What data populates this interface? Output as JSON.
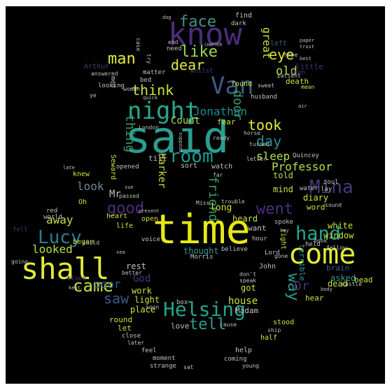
{
  "cloud": {
    "words": [
      {
        "text": "said",
        "color": "#2a9d8f"
      },
      {
        "text": "time",
        "color": "#e6e81a"
      },
      {
        "text": "know",
        "color": "#4b2d7a"
      },
      {
        "text": "shall",
        "color": "#e3ea3a"
      },
      {
        "text": "come",
        "color": "#e3ea3a"
      },
      {
        "text": "Van",
        "color": "#3e5a8a"
      },
      {
        "text": "night",
        "color": "#29a68b"
      },
      {
        "text": "Helsing",
        "color": "#22a38b"
      },
      {
        "text": "hand",
        "color": "#21a48b"
      },
      {
        "text": "Mina",
        "color": "#46397a"
      },
      {
        "text": "room",
        "color": "#1f9a8c"
      },
      {
        "text": "Lucy",
        "color": "#2f7b8e"
      },
      {
        "text": "came",
        "color": "#c4e03b"
      },
      {
        "text": "good",
        "color": "#4b2d7a"
      },
      {
        "text": "went",
        "color": "#4b2d7a"
      },
      {
        "text": "face",
        "color": "#4a8c8c"
      },
      {
        "text": "like",
        "color": "#9bd94a"
      },
      {
        "text": "man",
        "color": "#e8ec3a"
      },
      {
        "text": "dear",
        "color": "#e3ea3a"
      },
      {
        "text": "eye",
        "color": "#e0e52e"
      },
      {
        "text": "think",
        "color": "#c9e33a"
      },
      {
        "text": "took",
        "color": "#e3ea3a"
      },
      {
        "text": "day",
        "color": "#2a8f8c"
      },
      {
        "text": "saw",
        "color": "#3e5a8a"
      },
      {
        "text": "tell",
        "color": "#2a9d8f"
      },
      {
        "text": "way",
        "color": "#2a9d8f"
      },
      {
        "text": "door",
        "color": "#3a9a6a"
      },
      {
        "text": "friend",
        "color": "#3a9a6a"
      },
      {
        "text": "thing",
        "color": "#3a9a6a"
      },
      {
        "text": "Jonathan",
        "color": "#1f8a8a"
      },
      {
        "text": "Count",
        "color": "#a9dc4a"
      },
      {
        "text": "sleep",
        "color": "#b6de4a"
      },
      {
        "text": "old",
        "color": "#b6de4a"
      },
      {
        "text": "Professor",
        "color": "#b6de4a"
      },
      {
        "text": "poor",
        "color": "#3e5a8a"
      },
      {
        "text": "looked",
        "color": "#b6de4a"
      },
      {
        "text": "away",
        "color": "#bde04a"
      },
      {
        "text": "look",
        "color": "#6a8a9a"
      },
      {
        "text": "great",
        "color": "#c9e33a"
      },
      {
        "text": "Dr",
        "color": "#4b2d7a"
      },
      {
        "text": "Harker",
        "color": "#c9e33a"
      },
      {
        "text": "Mr",
        "color": "#c0c0c0"
      },
      {
        "text": "God",
        "color": "#46397a"
      },
      {
        "text": "house",
        "color": "#c9e33a"
      },
      {
        "text": "fear",
        "color": "#c9e33a"
      },
      {
        "text": "told",
        "color": "#b6de4a"
      },
      {
        "text": "long",
        "color": "#c9e33a"
      },
      {
        "text": "white",
        "color": "#c9e33a"
      },
      {
        "text": "window",
        "color": "#c9e33a"
      },
      {
        "text": "asked",
        "color": "#2a9d8f"
      },
      {
        "text": "thought",
        "color": "#2a9d8f"
      },
      {
        "text": "rest",
        "color": "#c0c0c0"
      },
      {
        "text": "heard",
        "color": "#c9e33a"
      },
      {
        "text": "want",
        "color": "#c0c0c0"
      },
      {
        "text": "diary",
        "color": "#c9e33a"
      },
      {
        "text": "word",
        "color": "#c9e33a"
      },
      {
        "text": "mind",
        "color": "#c9e33a"
      },
      {
        "text": "work",
        "color": "#c9e33a"
      },
      {
        "text": "light",
        "color": "#c9e33a"
      },
      {
        "text": "place",
        "color": "#c9e33a"
      },
      {
        "text": "round",
        "color": "#c9e33a"
      },
      {
        "text": "let",
        "color": "#c9e33a"
      },
      {
        "text": "love",
        "color": "#c0c0c0"
      },
      {
        "text": "got",
        "color": "#c9e33a"
      },
      {
        "text": "Madam",
        "color": "#c0c0c0"
      },
      {
        "text": "John",
        "color": "#c0c0c0"
      },
      {
        "text": "head",
        "color": "#c9e33a"
      },
      {
        "text": "dead",
        "color": "#c9e33a"
      },
      {
        "text": "brain",
        "color": "#3e5a8a"
      },
      {
        "text": "terrible",
        "color": "#2a9d8f"
      },
      {
        "text": "hear",
        "color": "#c9e33a"
      },
      {
        "text": "little",
        "color": "#4b2d7a"
      },
      {
        "text": "death",
        "color": "#c9e33a"
      },
      {
        "text": "mean",
        "color": "#c9e33a"
      },
      {
        "text": "seen",
        "color": "#46397a"
      },
      {
        "text": "left",
        "color": "#3e5a8a"
      },
      {
        "text": "find",
        "color": "#c0c0c0"
      },
      {
        "text": "dark",
        "color": "#c0c0c0"
      },
      {
        "text": "need",
        "color": "#c0c0c0"
      },
      {
        "text": "looking",
        "color": "#c0c0c0"
      },
      {
        "text": "Arthur",
        "color": "#46397a"
      },
      {
        "text": "whilst",
        "color": "#46397a"
      },
      {
        "text": "found",
        "color": "#c9e33a"
      },
      {
        "text": "heart",
        "color": "#c9e33a"
      },
      {
        "text": "life",
        "color": "#c9e33a"
      },
      {
        "text": "open",
        "color": "#c9e33a"
      },
      {
        "text": "began",
        "color": "#c9e33a"
      },
      {
        "text": "blood",
        "color": "#4b2d7a"
      },
      {
        "text": "knew",
        "color": "#c9e33a"
      },
      {
        "text": "felt",
        "color": "#4b2d7a"
      },
      {
        "text": "red",
        "color": "#c0c0c0"
      },
      {
        "text": "world",
        "color": "#c0c0c0"
      },
      {
        "text": "Oh",
        "color": "#c9e33a"
      },
      {
        "text": "Seward",
        "color": "#c9e33a"
      },
      {
        "text": "right",
        "color": "#c9e33a"
      },
      {
        "text": "help",
        "color": "#c0c0c0"
      },
      {
        "text": "coming",
        "color": "#c0c0c0"
      },
      {
        "text": "moment",
        "color": "#c0c0c0"
      },
      {
        "text": "strange",
        "color": "#c0c0c0"
      },
      {
        "text": "feel",
        "color": "#c0c0c0"
      },
      {
        "text": "close",
        "color": "#c0c0c0"
      },
      {
        "text": "better",
        "color": "#c0c0c0"
      },
      {
        "text": "voice",
        "color": "#c0c0c0"
      },
      {
        "text": "Morris",
        "color": "#c0c0c0"
      },
      {
        "text": "believe",
        "color": "#c0c0c0"
      },
      {
        "text": "Lord",
        "color": "#c0c0c0"
      },
      {
        "text": "hour",
        "color": "#c0c0c0"
      },
      {
        "text": "spoke",
        "color": "#c0c0c0"
      },
      {
        "text": "held",
        "color": "#c0c0c0"
      },
      {
        "text": "fellow",
        "color": "#c0c0c0"
      },
      {
        "text": "stood",
        "color": "#c9e33a"
      },
      {
        "text": "half",
        "color": "#c9e33a"
      },
      {
        "text": "ship",
        "color": "#c0c0c0"
      },
      {
        "text": "young",
        "color": "#c0c0c0"
      },
      {
        "text": "box",
        "color": "#c0c0c0"
      },
      {
        "text": "soon",
        "color": "#c0c0c0"
      },
      {
        "text": "water",
        "color": "#c0c0c0"
      },
      {
        "text": "soul",
        "color": "#c0c0c0"
      },
      {
        "text": "lay",
        "color": "#c0c0c0"
      },
      {
        "text": "sound",
        "color": "#c0c0c0"
      },
      {
        "text": "castle",
        "color": "#c0c0c0"
      },
      {
        "text": "book",
        "color": "#c0c0c0"
      },
      {
        "text": "Quincey",
        "color": "#c0c0c0"
      },
      {
        "text": "husband",
        "color": "#c0c0c0"
      },
      {
        "text": "bed",
        "color": "#c0c0c0"
      },
      {
        "text": "woman",
        "color": "#c0c0c0"
      },
      {
        "text": "matter",
        "color": "#c0c0c0"
      },
      {
        "text": "men",
        "color": "#c0c0c0"
      },
      {
        "text": "try",
        "color": "#c0c0c0"
      },
      {
        "text": "end",
        "color": "#c0c0c0"
      },
      {
        "text": "case",
        "color": "#c0c0c0"
      },
      {
        "text": "ye",
        "color": "#c0c0c0"
      },
      {
        "text": "answered",
        "color": "#c0c0c0"
      },
      {
        "text": "London",
        "color": "#c0c0c0"
      },
      {
        "text": "horse",
        "color": "#c0c0c0"
      },
      {
        "text": "turned",
        "color": "#c0c0c0"
      },
      {
        "text": "till",
        "color": "#c0c0c0"
      },
      {
        "text": "sort",
        "color": "#c0c0c0"
      },
      {
        "text": "watch",
        "color": "#c0c0c0"
      },
      {
        "text": "opened",
        "color": "#c0c0c0"
      },
      {
        "text": "passed",
        "color": "#c0c0c0"
      },
      {
        "text": "present",
        "color": "#c0c0c0"
      },
      {
        "text": "trouble",
        "color": "#c0c0c0"
      },
      {
        "text": "Miss",
        "color": "#c0c0c0"
      },
      {
        "text": "child",
        "color": "#c0c0c0"
      },
      {
        "text": "going",
        "color": "#c0c0c0"
      },
      {
        "text": "kept",
        "color": "#c0c0c0"
      },
      {
        "text": "sat",
        "color": "#c0c0c0"
      },
      {
        "text": "later",
        "color": "#c0c0c0"
      },
      {
        "text": "cause",
        "color": "#c0c0c0"
      },
      {
        "text": "don't",
        "color": "#c0c0c0"
      },
      {
        "text": "speak",
        "color": "#c0c0c0"
      },
      {
        "text": "gone",
        "color": "#c0c0c0"
      },
      {
        "text": "hope",
        "color": "#c0c0c0"
      },
      {
        "text": "best",
        "color": "#c0c0c0"
      },
      {
        "text": "patient",
        "color": "#c0c0c0"
      },
      {
        "text": "sweet",
        "color": "#c0c0c0"
      },
      {
        "text": "trust",
        "color": "#c0c0c0"
      },
      {
        "text": "air",
        "color": "#c0c0c0"
      },
      {
        "text": "CHAPTER",
        "color": "#c0c0c0"
      },
      {
        "text": "quick",
        "color": "#c0c0c0"
      },
      {
        "text": "sun",
        "color": "#c0c0c0"
      },
      {
        "text": "late",
        "color": "#c0c0c0"
      },
      {
        "text": "body",
        "color": "#c0c0c0"
      },
      {
        "text": "ready",
        "color": "#c0c0c0"
      },
      {
        "text": "letter",
        "color": "#c0c0c0"
      },
      {
        "text": "suppose",
        "color": "#c0c0c0"
      },
      {
        "text": "far",
        "color": "#c0c0c0"
      },
      {
        "text": "dog",
        "color": "#c0c0c0"
      },
      {
        "text": "paper",
        "color": "#c0c0c0"
      },
      {
        "text": "sea",
        "color": "#c0c0c0"
      },
      {
        "text": "key",
        "color": "#c0c0c0"
      }
    ]
  }
}
